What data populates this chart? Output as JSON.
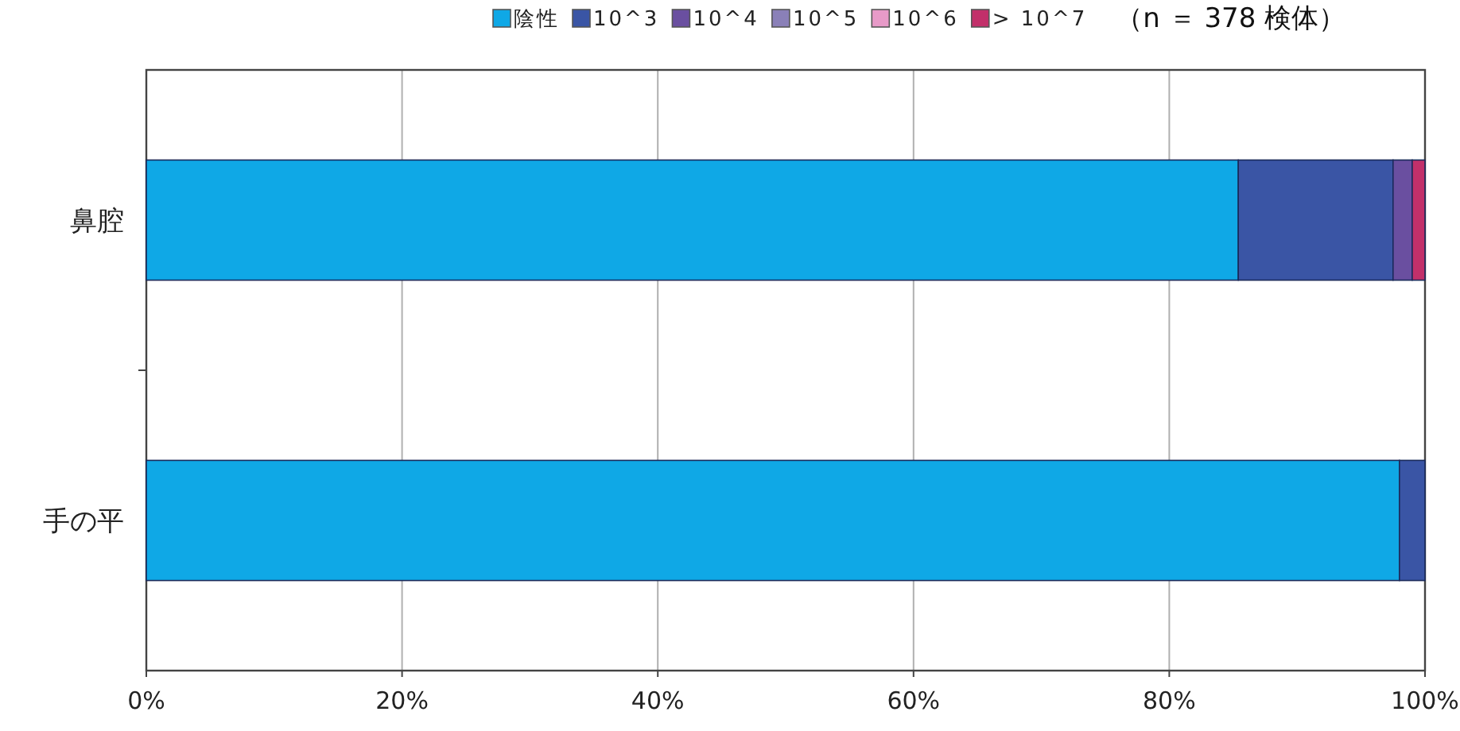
{
  "chart_data": {
    "type": "bar",
    "orientation": "horizontal",
    "stacked": true,
    "categories": [
      "鼻腔",
      "手の平"
    ],
    "series": [
      {
        "name": "陰性",
        "color": "#0fa8e6",
        "values": [
          85.4,
          98.0
        ]
      },
      {
        "name": "10^3",
        "color": "#3a55a5",
        "values": [
          12.1,
          2.0
        ]
      },
      {
        "name": "10^4",
        "color": "#6a4fa0",
        "values": [
          1.5,
          0
        ]
      },
      {
        "name": "10^5",
        "color": "#8a80b8",
        "values": [
          0,
          0
        ]
      },
      {
        "name": "10^6",
        "color": "#e79ac8",
        "values": [
          0,
          0
        ]
      },
      {
        "name": "> 10^7",
        "color": "#c2306a",
        "values": [
          1.0,
          0
        ]
      }
    ],
    "xlim": [
      0,
      100
    ],
    "xticks": [
      {
        "value": 0,
        "label": "0%"
      },
      {
        "value": 20,
        "label": "20%"
      },
      {
        "value": 40,
        "label": "40%"
      },
      {
        "value": 60,
        "label": "60%"
      },
      {
        "value": 80,
        "label": "80%"
      },
      {
        "value": 100,
        "label": "100%"
      }
    ],
    "grid": "x",
    "legend": "top",
    "annotations": [
      "（n ＝ 378 検体）"
    ]
  }
}
